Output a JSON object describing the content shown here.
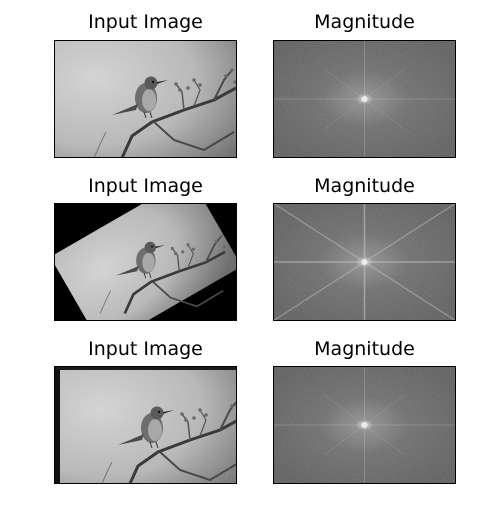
{
  "figure": {
    "rows": [
      {
        "left_title": "Input Image",
        "right_title": "Magnitude",
        "variant": "original"
      },
      {
        "left_title": "Input Image",
        "right_title": "Magnitude",
        "variant": "rotated"
      },
      {
        "left_title": "Input Image",
        "right_title": "Magnitude",
        "variant": "shifted"
      }
    ]
  }
}
